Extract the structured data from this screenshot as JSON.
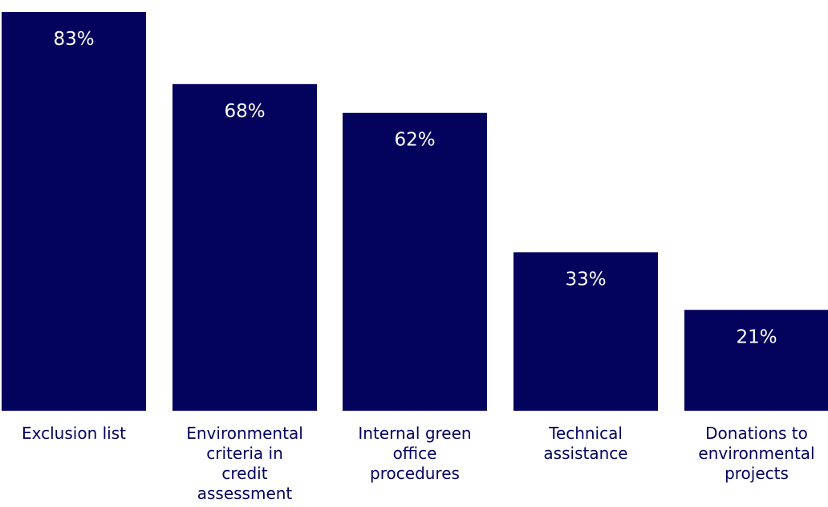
{
  "chart_data": {
    "type": "bar",
    "categories": [
      "Exclusion list",
      "Environmental criteria in credit assessment",
      "Internal green office procedures",
      "Technical assistance",
      "Donations to environmental projects"
    ],
    "category_lines": [
      [
        "Exclusion list"
      ],
      [
        "Environmental",
        "criteria in",
        "credit",
        "assessment"
      ],
      [
        "Internal green",
        "office",
        "procedures"
      ],
      [
        "Technical",
        "assistance"
      ],
      [
        "Donations to",
        "environmental",
        "projects"
      ]
    ],
    "values": [
      83,
      68,
      62,
      33,
      21
    ],
    "value_labels": [
      "83%",
      "68%",
      "62%",
      "33%",
      "21%"
    ],
    "ylim": [
      0,
      83
    ],
    "grid": false,
    "legend": "none",
    "bar_color": "#03035e",
    "label_color": "#ffffff",
    "text_color": "#03035e"
  }
}
